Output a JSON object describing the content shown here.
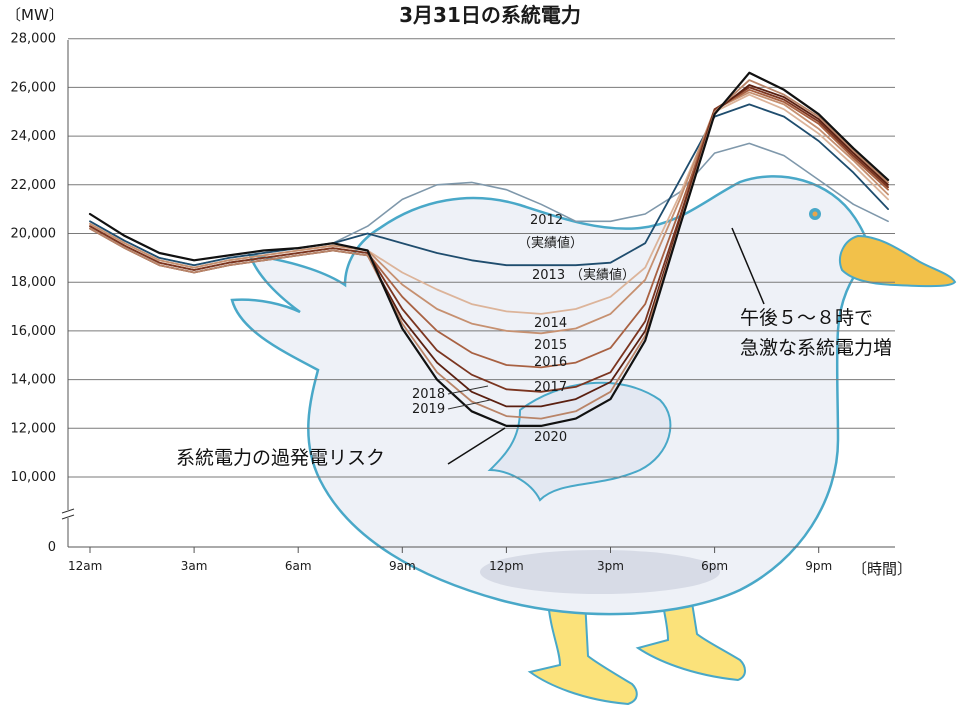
{
  "chart_data": {
    "type": "line",
    "title": "3月31日の系統電力",
    "y_unit_label": "〔MW〕",
    "x_unit_label": "〔時間〕",
    "ylim": [
      0,
      28000
    ],
    "y_ticks": [
      "28,000",
      "26,000",
      "24,000",
      "22,000",
      "20,000",
      "18,000",
      "16,000",
      "14,000",
      "12,000",
      "10,000",
      "0"
    ],
    "y_tick_values": [
      28000,
      26000,
      24000,
      22000,
      20000,
      18000,
      16000,
      14000,
      12000,
      10000,
      0
    ],
    "x_ticks": [
      "12am",
      "3am",
      "6am",
      "9am",
      "12pm",
      "3pm",
      "6pm",
      "9pm"
    ],
    "x_tick_hours": [
      0,
      3,
      6,
      9,
      12,
      15,
      18,
      21
    ],
    "x_hours": [
      0,
      1,
      2,
      3,
      4,
      5,
      6,
      7,
      8,
      9,
      10,
      11,
      12,
      13,
      14,
      15,
      16,
      17,
      18,
      19,
      20,
      21,
      22,
      23
    ],
    "series": [
      {
        "name": "2012",
        "sub": "（実績値）",
        "color": "#7f98ab",
        "width": 1.6,
        "values": [
          20500,
          19700,
          19000,
          18700,
          19000,
          19200,
          19400,
          19600,
          20300,
          21400,
          22000,
          22100,
          21800,
          21200,
          20500,
          20500,
          20800,
          21700,
          23300,
          23700,
          23200,
          22200,
          21200,
          20500
        ]
      },
      {
        "name": "2013",
        "sub": "（実績値）",
        "color": "#1f4d6e",
        "width": 1.8,
        "values": [
          20500,
          19700,
          19000,
          18700,
          19000,
          19200,
          19400,
          19600,
          20000,
          19600,
          19200,
          18900,
          18700,
          18700,
          18700,
          18800,
          19600,
          22200,
          24800,
          25300,
          24800,
          23800,
          22500,
          21000
        ]
      },
      {
        "name": "2014",
        "color": "#dcb49a",
        "width": 1.8,
        "values": [
          20400,
          19600,
          18900,
          18600,
          18900,
          19100,
          19300,
          19500,
          19300,
          18400,
          17700,
          17100,
          16800,
          16700,
          16900,
          17400,
          18600,
          21600,
          25000,
          25700,
          25100,
          24100,
          22800,
          21400
        ]
      },
      {
        "name": "2015",
        "color": "#c69070",
        "width": 1.8,
        "values": [
          20400,
          19600,
          18900,
          18600,
          18900,
          19100,
          19300,
          19500,
          19300,
          17900,
          16900,
          16300,
          16000,
          15900,
          16100,
          16700,
          18100,
          21400,
          25100,
          25800,
          25300,
          24300,
          23000,
          21600
        ]
      },
      {
        "name": "2016",
        "color": "#a86142",
        "width": 1.8,
        "values": [
          20300,
          19500,
          18800,
          18500,
          18800,
          19000,
          19200,
          19400,
          19200,
          17400,
          16000,
          15100,
          14600,
          14500,
          14700,
          15300,
          17100,
          21000,
          25100,
          25900,
          25400,
          24500,
          23100,
          21800
        ]
      },
      {
        "name": "2017",
        "color": "#7b3520",
        "width": 1.8,
        "values": [
          20300,
          19500,
          18800,
          18500,
          18800,
          19000,
          19200,
          19400,
          19200,
          16900,
          15200,
          14200,
          13600,
          13500,
          13700,
          14300,
          16400,
          20700,
          25100,
          26000,
          25500,
          24600,
          23200,
          21900
        ]
      },
      {
        "name": "2018",
        "color": "#5a1f10",
        "width": 1.8,
        "values": [
          20200,
          19400,
          18700,
          18400,
          18700,
          18900,
          19100,
          19300,
          19100,
          16500,
          14700,
          13500,
          12900,
          12900,
          13200,
          13900,
          16000,
          20500,
          25000,
          26100,
          25600,
          24700,
          23300,
          22000
        ]
      },
      {
        "name": "2019",
        "color": "#b98468",
        "width": 1.8,
        "values": [
          20200,
          19400,
          18700,
          18400,
          18700,
          18900,
          19100,
          19300,
          19100,
          16300,
          14300,
          13100,
          12500,
          12400,
          12700,
          13500,
          15800,
          20400,
          25000,
          26300,
          25700,
          24800,
          23400,
          22100
        ]
      },
      {
        "name": "2020",
        "color": "#111111",
        "width": 2.2,
        "values": [
          20800,
          19900,
          19200,
          18900,
          19100,
          19300,
          19400,
          19600,
          19300,
          16100,
          14000,
          12700,
          12100,
          12100,
          12400,
          13200,
          15600,
          20300,
          24900,
          26600,
          25900,
          24900,
          23500,
          22200
        ]
      }
    ],
    "annotations": {
      "evening": [
        "午後５～８時で",
        "急激な系統電力増"
      ],
      "overgen": "系統電力の過発電リスク"
    },
    "grid": true
  }
}
